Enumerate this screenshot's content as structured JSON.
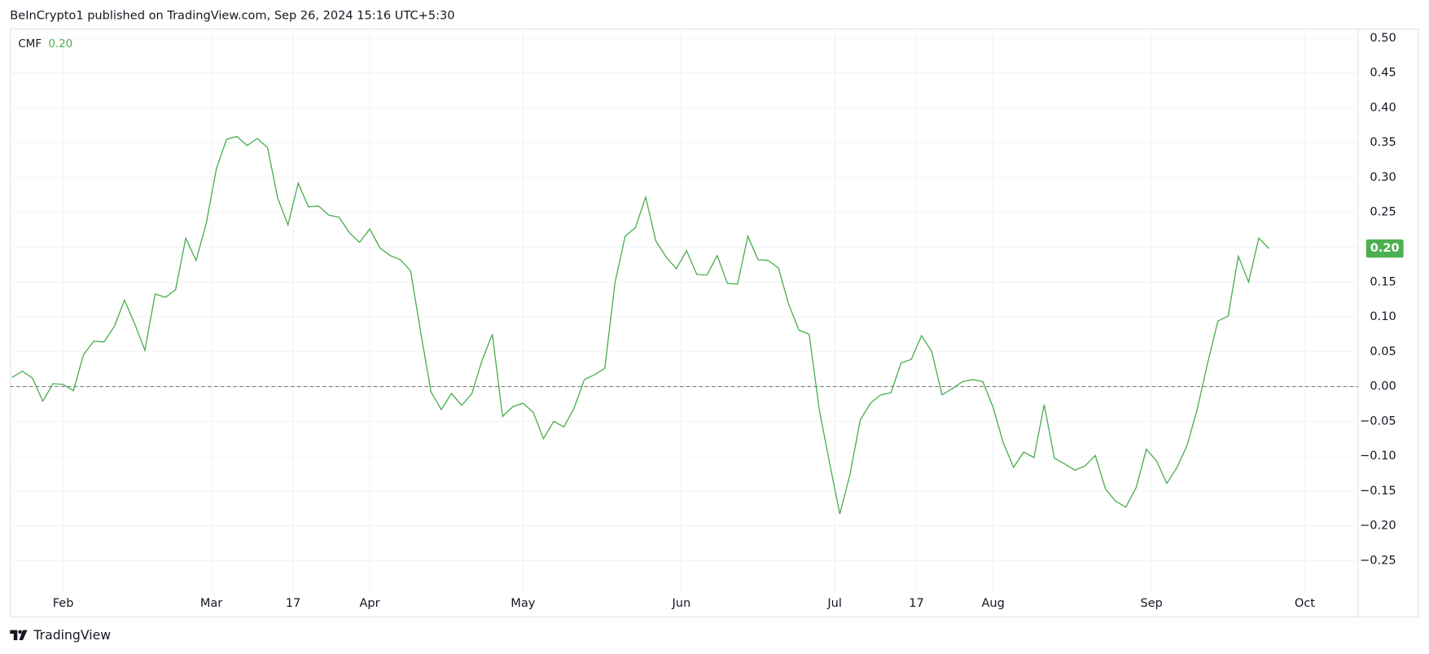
{
  "header": "BeInCrypto1 published on TradingView.com, Sep 26, 2024 15:16 UTC+5:30",
  "footer": "TradingView",
  "chart_data": {
    "type": "line",
    "grid": true,
    "reference_line": 0,
    "xlim": [
      20.6,
      284.4
    ],
    "ylim": [
      -0.296,
      0.514
    ],
    "xticks": [
      {
        "value": 31,
        "label": "Feb"
      },
      {
        "value": 60,
        "label": "Mar"
      },
      {
        "value": 76,
        "label": "17"
      },
      {
        "value": 91,
        "label": "Apr"
      },
      {
        "value": 121,
        "label": "May"
      },
      {
        "value": 152,
        "label": "Jun"
      },
      {
        "value": 182,
        "label": "Jul"
      },
      {
        "value": 198,
        "label": "17"
      },
      {
        "value": 213,
        "label": "Aug"
      },
      {
        "value": 244,
        "label": "Sep"
      },
      {
        "value": 274,
        "label": "Oct"
      }
    ],
    "yticks": [
      {
        "value": 0.5,
        "label": "0.50"
      },
      {
        "value": 0.45,
        "label": "0.45"
      },
      {
        "value": 0.4,
        "label": "0.40"
      },
      {
        "value": 0.35,
        "label": "0.35"
      },
      {
        "value": 0.3,
        "label": "0.30"
      },
      {
        "value": 0.25,
        "label": "0.25"
      },
      {
        "value": 0.2,
        "label": "0.20"
      },
      {
        "value": 0.15,
        "label": "0.15"
      },
      {
        "value": 0.1,
        "label": "0.10"
      },
      {
        "value": 0.05,
        "label": "0.05"
      },
      {
        "value": 0,
        "label": "0.00"
      },
      {
        "value": -0.05,
        "label": "−0.05"
      },
      {
        "value": -0.1,
        "label": "−0.10"
      },
      {
        "value": -0.15,
        "label": "−0.15"
      },
      {
        "value": -0.2,
        "label": "−0.20"
      },
      {
        "value": -0.25,
        "label": "−0.25"
      }
    ],
    "x": [
      21,
      23,
      25,
      27,
      29,
      31,
      33,
      35,
      37,
      39,
      41,
      43,
      45,
      47,
      49,
      51,
      53,
      55,
      57,
      59,
      61,
      63,
      65,
      67,
      69,
      71,
      73,
      75,
      77,
      79,
      81,
      83,
      85,
      87,
      89,
      91,
      93,
      95,
      97,
      99,
      101,
      103,
      105,
      107,
      109,
      111,
      113,
      115,
      117,
      119,
      121,
      123,
      125,
      127,
      129,
      131,
      133,
      135,
      137,
      139,
      141,
      143,
      145,
      147,
      149,
      151,
      153,
      155,
      157,
      159,
      161,
      163,
      165,
      167,
      169,
      171,
      173,
      175,
      177,
      179,
      181,
      183,
      185,
      187,
      189,
      191,
      193,
      195,
      197,
      199,
      201,
      203,
      205,
      207,
      209,
      211,
      213,
      215,
      217,
      219,
      221,
      223,
      225,
      227,
      229,
      231,
      233,
      235,
      237,
      239,
      241,
      243,
      245,
      247,
      249,
      251,
      253,
      255,
      257,
      259,
      261,
      263,
      265,
      267
    ],
    "series": [
      {
        "name": "CMF",
        "color": "#4caf50",
        "value_label": "0.20",
        "values": [
          0.013,
          0.022,
          0.012,
          -0.021,
          0.004,
          0.003,
          -0.006,
          0.046,
          0.065,
          0.064,
          0.086,
          0.124,
          0.09,
          0.052,
          0.133,
          0.128,
          0.139,
          0.213,
          0.181,
          0.234,
          0.313,
          0.355,
          0.359,
          0.346,
          0.356,
          0.343,
          0.27,
          0.232,
          0.292,
          0.258,
          0.259,
          0.246,
          0.243,
          0.221,
          0.207,
          0.226,
          0.199,
          0.188,
          0.182,
          0.166,
          0.077,
          -0.008,
          -0.033,
          -0.01,
          -0.027,
          -0.01,
          0.038,
          0.075,
          -0.043,
          -0.029,
          -0.024,
          -0.037,
          -0.075,
          -0.05,
          -0.058,
          -0.031,
          0.01,
          0.017,
          0.026,
          0.149,
          0.216,
          0.228,
          0.272,
          0.209,
          0.186,
          0.169,
          0.195,
          0.161,
          0.16,
          0.188,
          0.148,
          0.147,
          0.216,
          0.182,
          0.181,
          0.17,
          0.118,
          0.081,
          0.075,
          -0.034,
          -0.11,
          -0.183,
          -0.126,
          -0.048,
          -0.024,
          -0.012,
          -0.009,
          0.034,
          0.039,
          0.073,
          0.05,
          -0.012,
          -0.003,
          0.007,
          0.01,
          0.007,
          -0.03,
          -0.081,
          -0.116,
          -0.094,
          -0.102,
          -0.026,
          -0.103,
          -0.111,
          -0.12,
          -0.114,
          -0.099,
          -0.147,
          -0.165,
          -0.173,
          -0.145,
          -0.09,
          -0.107,
          -0.139,
          -0.116,
          -0.084,
          -0.031,
          0.034,
          0.094,
          0.101,
          0.187,
          0.15,
          0.213,
          0.198
        ]
      }
    ]
  }
}
